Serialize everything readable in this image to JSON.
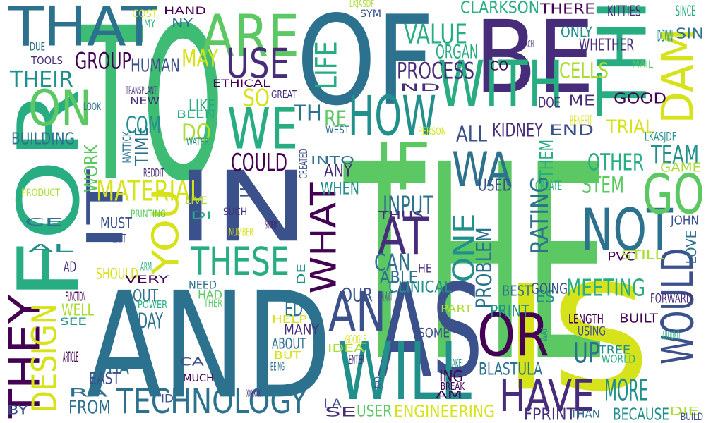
{
  "colors": {
    "background": "#ffffff",
    "palette": [
      "#440154",
      "#472c7a",
      "#3b518b",
      "#2c718e",
      "#21908d",
      "#27ad81",
      "#5cc863",
      "#aadc32",
      "#d6e21a"
    ]
  },
  "words": [
    {
      "text": "THE",
      "color": "#5cc863"
    },
    {
      "text": "AND",
      "color": "#2c718e"
    },
    {
      "text": "TO",
      "color": "#3fbc73"
    },
    {
      "text": "OF",
      "color": "#2c718e"
    },
    {
      "text": "BE",
      "color": "#472c7a"
    },
    {
      "text": "IS",
      "color": "#d6e21a"
    },
    {
      "text": "AS",
      "color": "#3b518b"
    },
    {
      "text": "IN",
      "color": "#3b518b"
    },
    {
      "text": "THAT",
      "color": "#2c718e"
    },
    {
      "text": "FOR",
      "color": "#27ad81"
    },
    {
      "text": "WILL",
      "color": "#21908d"
    },
    {
      "text": "ARE",
      "color": "#5cc863"
    },
    {
      "text": "THI",
      "color": "#27ad81"
    },
    {
      "text": "WE",
      "color": "#27ad81"
    },
    {
      "text": "WITH",
      "color": "#27ad81"
    },
    {
      "text": "DAM",
      "color": "#d6e21a"
    },
    {
      "text": "IT",
      "color": "#3b518b"
    },
    {
      "text": "OR",
      "color": "#440154"
    },
    {
      "text": "USE",
      "color": "#472c7a"
    },
    {
      "text": "ON",
      "color": "#5cc863"
    },
    {
      "text": "HOW",
      "color": "#21908d"
    },
    {
      "text": "NOT",
      "color": "#2c718e"
    },
    {
      "text": "GO",
      "color": "#5cc863"
    },
    {
      "text": "WOULD",
      "color": "#3b518b"
    },
    {
      "text": "THEY",
      "color": "#440154"
    },
    {
      "text": "HAVE",
      "color": "#472c7a"
    },
    {
      "text": "TECHNOLOGY",
      "color": "#2c718e"
    },
    {
      "text": "AN",
      "color": "#3b518b"
    },
    {
      "text": "WHAT",
      "color": "#440154"
    },
    {
      "text": "DESIGN",
      "color": "#d6e21a"
    },
    {
      "text": "YOU",
      "color": "#d6e21a"
    },
    {
      "text": "THESE",
      "color": "#27ad81"
    },
    {
      "text": "AT",
      "color": "#472c7a"
    },
    {
      "text": "IF",
      "color": "#5cc863"
    },
    {
      "text": "WA",
      "color": "#2c718e"
    },
    {
      "text": "ONE",
      "color": "#21908d"
    },
    {
      "text": "LIFE",
      "color": "#27ad81"
    },
    {
      "text": "UP",
      "color": "#2c718e"
    },
    {
      "text": "MORE",
      "color": "#21908d"
    },
    {
      "text": "RATING",
      "color": "#2c718e"
    },
    {
      "text": "PROBLEM",
      "color": "#2c718e"
    },
    {
      "text": "VALUE",
      "color": "#27ad81"
    },
    {
      "text": "PROCESS",
      "color": "#472c7a"
    },
    {
      "text": "MATERIAL",
      "color": "#d6e21a"
    },
    {
      "text": "TEAM",
      "color": "#21908d"
    },
    {
      "text": "OTHER",
      "color": "#27ad81"
    },
    {
      "text": "STEM",
      "color": "#5cc863"
    },
    {
      "text": "COULD",
      "color": "#440154"
    },
    {
      "text": "INPUT",
      "color": "#2c718e"
    },
    {
      "text": "CAN",
      "color": "#2c718e"
    },
    {
      "text": "MEETING",
      "color": "#27ad81"
    },
    {
      "text": "CLARKSON",
      "color": "#27ad81"
    },
    {
      "text": "THEIR",
      "color": "#21908d"
    },
    {
      "text": "GROUP",
      "color": "#440154"
    },
    {
      "text": "HUMAN",
      "color": "#3b518b"
    },
    {
      "text": "MAY",
      "color": "#d6e21a"
    },
    {
      "text": "COM",
      "color": "#21908d"
    },
    {
      "text": "DO",
      "color": "#aadc32"
    },
    {
      "text": "SO",
      "color": "#d6e21a"
    },
    {
      "text": "TH",
      "color": "#2c718e"
    },
    {
      "text": "RE",
      "color": "#5cc863"
    },
    {
      "text": "ALL",
      "color": "#3b518b"
    },
    {
      "text": "KIDNEY",
      "color": "#472c7a"
    },
    {
      "text": "CELLS",
      "color": "#aadc32"
    },
    {
      "text": "ORGAN",
      "color": "#27ad81"
    },
    {
      "text": "THEM",
      "color": "#27ad81"
    },
    {
      "text": "TRIAL",
      "color": "#d6e21a"
    },
    {
      "text": "BLASTULA",
      "color": "#2c718e"
    },
    {
      "text": "CLINICAL",
      "color": "#21908d"
    },
    {
      "text": "ABLE",
      "color": "#2c718e"
    },
    {
      "text": "OUR",
      "color": "#3b518b"
    },
    {
      "text": "ANY",
      "color": "#472c7a"
    },
    {
      "text": "WHEN",
      "color": "#21908d"
    },
    {
      "text": "USED",
      "color": "#3b518b"
    },
    {
      "text": "BUILDING",
      "color": "#2c718e"
    },
    {
      "text": "WORK",
      "color": "#5cc863"
    },
    {
      "text": "TIME",
      "color": "#2c718e"
    },
    {
      "text": "ED",
      "color": "#2c718e"
    },
    {
      "text": "DAY",
      "color": "#2c718e"
    },
    {
      "text": "WELL",
      "color": "#aadc32"
    },
    {
      "text": "OUT",
      "color": "#2c718e"
    },
    {
      "text": "HA",
      "color": "#2c718e"
    },
    {
      "text": "FROM",
      "color": "#2c718e"
    },
    {
      "text": "EAST",
      "color": "#3b518b"
    },
    {
      "text": "MUST",
      "color": "#3b518b"
    },
    {
      "text": "SHOULD",
      "color": "#d6e21a"
    },
    {
      "text": "PRINT",
      "color": "#21908d"
    },
    {
      "text": "MANY",
      "color": "#472c7a"
    },
    {
      "text": "ABOUT",
      "color": "#2c718e"
    },
    {
      "text": "ING",
      "color": "#440154"
    },
    {
      "text": "ENGINEERING",
      "color": "#d6e21a"
    },
    {
      "text": "USER",
      "color": "#5cc863"
    },
    {
      "text": "BECAUSE",
      "color": "#21908d"
    },
    {
      "text": "FPRINTF",
      "color": "#472c7a"
    },
    {
      "text": "LIKE",
      "color": "#27ad81"
    },
    {
      "text": "US",
      "color": "#3b518b"
    },
    {
      "text": "ES",
      "color": "#21908d"
    },
    {
      "text": "BEST",
      "color": "#2c718e"
    },
    {
      "text": "GOING",
      "color": "#3b518b"
    },
    {
      "text": "WHETHER",
      "color": "#472c7a"
    },
    {
      "text": "ONLY",
      "color": "#21908d"
    },
    {
      "text": "THERE",
      "color": "#440154"
    },
    {
      "text": "KITTIES",
      "color": "#472c7a"
    },
    {
      "text": "SINCE",
      "color": "#27ad81"
    },
    {
      "text": "SIN",
      "color": "#2c718e"
    },
    {
      "text": "DOWN",
      "color": "#21908d"
    },
    {
      "text": "CO",
      "color": "#440154"
    },
    {
      "text": "ME",
      "color": "#472c7a"
    },
    {
      "text": "GOOD",
      "color": "#440154"
    },
    {
      "text": "BENEFIT",
      "color": "#d6e21a"
    },
    {
      "text": "DOE",
      "color": "#472c7a"
    },
    {
      "text": "END",
      "color": "#3b518b"
    },
    {
      "text": "LKASJDF",
      "color": "#21908d"
    },
    {
      "text": "GAME",
      "color": "#aadc32"
    },
    {
      "text": "CREATE",
      "color": "#27ad81"
    },
    {
      "text": "JOHN",
      "color": "#3b518b"
    },
    {
      "text": "LOVE",
      "color": "#2c718e"
    },
    {
      "text": "PVC",
      "color": "#440154"
    },
    {
      "text": "STILL",
      "color": "#aadc32"
    },
    {
      "text": "FORWARD",
      "color": "#472c7a"
    },
    {
      "text": "BUILT",
      "color": "#440154"
    },
    {
      "text": "LENGTH",
      "color": "#440154"
    },
    {
      "text": "USING",
      "color": "#3b518b"
    },
    {
      "text": "TREE",
      "color": "#21908d"
    },
    {
      "text": "WORLD",
      "color": "#27ad81"
    },
    {
      "text": "AROUND",
      "color": "#27ad81"
    },
    {
      "text": "DIE",
      "color": "#aadc32"
    },
    {
      "text": "BUILD",
      "color": "#3b518b"
    },
    {
      "text": "THAN",
      "color": "#2c718e"
    },
    {
      "text": "SOME",
      "color": "#3b518b"
    },
    {
      "text": "MAKE",
      "color": "#21908d"
    },
    {
      "text": "AM",
      "color": "#440154"
    },
    {
      "text": "BREAK",
      "color": "#440154"
    },
    {
      "text": "PART",
      "color": "#aadc32"
    },
    {
      "text": "WALMART",
      "color": "#3b518b"
    },
    {
      "text": "HE",
      "color": "#472c7a"
    },
    {
      "text": "DE",
      "color": "#21908d"
    },
    {
      "text": "HELP",
      "color": "#d6e21a"
    },
    {
      "text": "GOOGLE",
      "color": "#d6e21a"
    },
    {
      "text": "BUT",
      "color": "#d6e21a"
    },
    {
      "text": "IDEA",
      "color": "#aadc32"
    },
    {
      "text": "ENTER",
      "color": "#472c7a"
    },
    {
      "text": "NO",
      "color": "#3b518b"
    },
    {
      "text": "LA",
      "color": "#3b518b"
    },
    {
      "text": "SE",
      "color": "#472c7a"
    },
    {
      "text": "BEING",
      "color": "#2c718e"
    },
    {
      "text": "CA",
      "color": "#3b518b"
    },
    {
      "text": "MUCH",
      "color": "#440154"
    },
    {
      "text": "XXXXXX",
      "color": "#472c7a"
    },
    {
      "text": "ID",
      "color": "#3b518b"
    },
    {
      "text": "RA",
      "color": "#2c718e"
    },
    {
      "text": "ARTICLE",
      "color": "#440154"
    },
    {
      "text": "BY",
      "color": "#3b518b"
    },
    {
      "text": "SEE",
      "color": "#21908d"
    },
    {
      "text": "POWER",
      "color": "#27ad81"
    },
    {
      "text": "THER",
      "color": "#5cc863"
    },
    {
      "text": "HAD",
      "color": "#5cc863"
    },
    {
      "text": "NEED",
      "color": "#2c718e"
    },
    {
      "text": "VERY",
      "color": "#440154"
    },
    {
      "text": "FUNCTION",
      "color": "#440154"
    },
    {
      "text": "ARM",
      "color": "#27ad81"
    },
    {
      "text": "AD",
      "color": "#472c7a"
    },
    {
      "text": "LIST",
      "color": "#3b518b"
    },
    {
      "text": "AL",
      "color": "#21908d"
    },
    {
      "text": "CE",
      "color": "#2c718e"
    },
    {
      "text": "PRINTING",
      "color": "#5cc863"
    },
    {
      "text": "PRODUCT",
      "color": "#aadc32"
    },
    {
      "text": "NUMBER",
      "color": "#d6e21a"
    },
    {
      "text": "SOCIETY",
      "color": "#440154"
    },
    {
      "text": "SUCH",
      "color": "#472c7a"
    },
    {
      "text": "DI",
      "color": "#27ad81"
    },
    {
      "text": "LIVE",
      "color": "#aadc32"
    },
    {
      "text": "THUS",
      "color": "#472c7a"
    },
    {
      "text": "INTO",
      "color": "#2c718e"
    },
    {
      "text": "CREATED",
      "color": "#3b518b"
    },
    {
      "text": "MATTICK",
      "color": "#2c718e"
    },
    {
      "text": "WATER",
      "color": "#21908d"
    },
    {
      "text": "REDDIT",
      "color": "#472c7a"
    },
    {
      "text": "BEEN",
      "color": "#27ad81"
    },
    {
      "text": "NEW",
      "color": "#472c7a"
    },
    {
      "text": "ETHICAL",
      "color": "#440154"
    },
    {
      "text": "GREAT",
      "color": "#472c7a"
    },
    {
      "text": "TRANSPLANT",
      "color": "#472c7a"
    },
    {
      "text": "LOOK",
      "color": "#2c718e"
    },
    {
      "text": "TOOLS",
      "color": "#472c7a"
    },
    {
      "text": "DUE",
      "color": "#2c718e"
    },
    {
      "text": "COST",
      "color": "#d6e21a"
    },
    {
      "text": "MY",
      "color": "#27ad81"
    },
    {
      "text": "HAND",
      "color": "#440154"
    },
    {
      "text": "NY",
      "color": "#2c718e"
    },
    {
      "text": "LKJASDF",
      "color": "#aadc32"
    },
    {
      "text": "SYM",
      "color": "#3b518b"
    },
    {
      "text": "EACH",
      "color": "#472c7a"
    },
    {
      "text": "MAIL",
      "color": "#5cc863"
    },
    {
      "text": "ND",
      "color": "#472c7a"
    },
    {
      "text": "WEST",
      "color": "#2c718e"
    },
    {
      "text": "PERSON",
      "color": "#d6e21a"
    },
    {
      "text": "WAY",
      "color": "#21908d"
    },
    {
      "text": "RIGHT",
      "color": "#440154"
    },
    {
      "text": "TAKE",
      "color": "#aadc32"
    }
  ]
}
